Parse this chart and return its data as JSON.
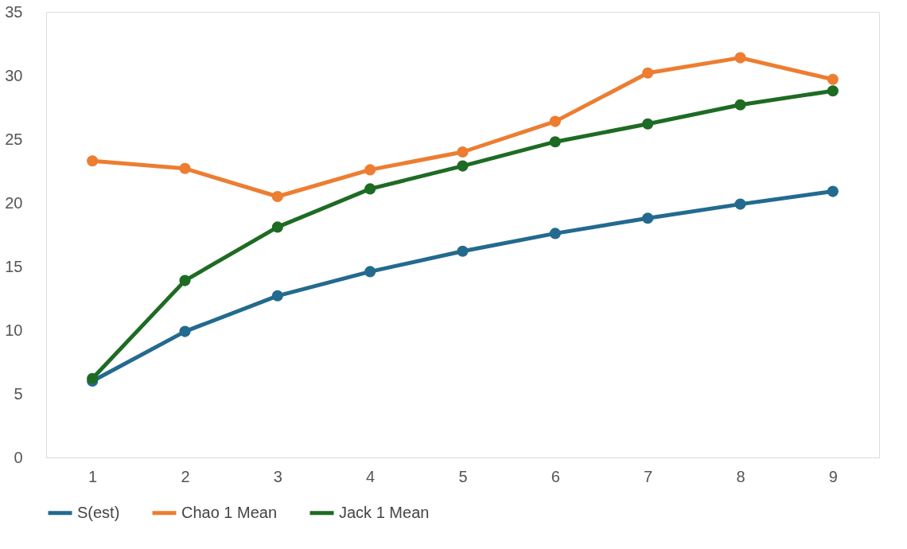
{
  "chart_data": {
    "type": "line",
    "categories": [
      "1",
      "2",
      "3",
      "4",
      "5",
      "6",
      "7",
      "8",
      "9"
    ],
    "series": [
      {
        "name": "S(est)",
        "color": "#236a8e",
        "values": [
          6.0,
          9.9,
          12.7,
          14.6,
          16.2,
          17.6,
          18.8,
          19.9,
          20.9
        ]
      },
      {
        "name": "Chao 1 Mean",
        "color": "#ed7d31",
        "values": [
          23.3,
          22.7,
          20.5,
          22.6,
          24.0,
          26.4,
          30.2,
          31.4,
          29.7
        ]
      },
      {
        "name": "Jack 1 Mean",
        "color": "#1e6b24",
        "values": [
          6.2,
          13.9,
          18.1,
          21.1,
          22.9,
          24.8,
          26.2,
          27.7,
          28.8
        ]
      }
    ],
    "ylim": [
      0,
      35
    ],
    "yticks": [
      0,
      5,
      10,
      15,
      20,
      25,
      30,
      35
    ],
    "grid": false,
    "legend": "bottom",
    "marker": "circle",
    "line_style": "solid"
  }
}
